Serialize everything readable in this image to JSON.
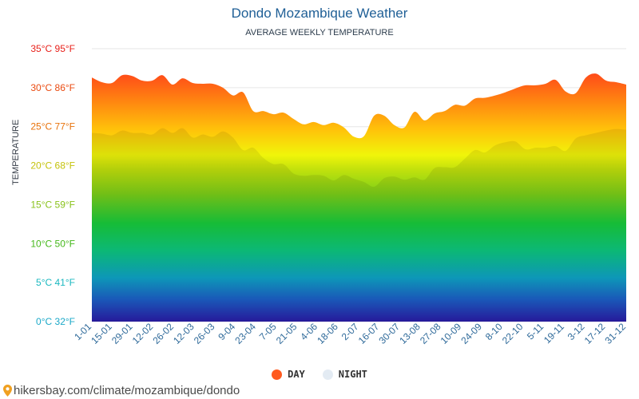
{
  "header": {
    "title": "Dondo Mozambique Weather",
    "subtitle": "AVERAGE WEEKLY TEMPERATURE"
  },
  "legend": {
    "day_label": "DAY",
    "night_label": "NIGHT"
  },
  "footer": {
    "url": "hikersbay.com/climate/mozambique/dondo"
  },
  "colors": {
    "title": "#1f5f96",
    "day_dot": "#ff5a1f",
    "night_dot": "#e3ebf3",
    "gridline": "#e6e6e6"
  },
  "chart_data": {
    "type": "area",
    "title": "Dondo Mozambique Weather",
    "subtitle": "AVERAGE WEEKLY TEMPERATURE",
    "xlabel": "",
    "ylabel": "TEMPERATURE",
    "ylim": [
      0,
      35
    ],
    "legend_position": "bottom-center",
    "y_ticks": [
      {
        "value": 0,
        "label": "0°C 32°F",
        "color": "#1aa8c8"
      },
      {
        "value": 5,
        "label": "5°C 41°F",
        "color": "#1ab8c0"
      },
      {
        "value": 10,
        "label": "10°C 50°F",
        "color": "#44b81a"
      },
      {
        "value": 15,
        "label": "15°C 59°F",
        "color": "#88c21a"
      },
      {
        "value": 20,
        "label": "20°C 68°F",
        "color": "#c4c20a"
      },
      {
        "value": 25,
        "label": "25°C 77°F",
        "color": "#e8720a"
      },
      {
        "value": 30,
        "label": "30°C 86°F",
        "color": "#ea4a10"
      },
      {
        "value": 35,
        "label": "35°C 95°F",
        "color": "#e8201a"
      }
    ],
    "x_labels": [
      "1-01",
      "15-01",
      "29-01",
      "12-02",
      "26-02",
      "12-03",
      "26-03",
      "9-04",
      "23-04",
      "7-05",
      "21-05",
      "4-06",
      "18-06",
      "2-07",
      "16-07",
      "30-07",
      "13-08",
      "27-08",
      "10-09",
      "24-09",
      "8-10",
      "22-10",
      "5-11",
      "19-11",
      "3-12",
      "17-12",
      "31-12"
    ],
    "series": [
      {
        "name": "DAY",
        "values": [
          31.3,
          30.7,
          30.6,
          31.6,
          31.5,
          30.9,
          30.9,
          31.6,
          30.4,
          31.2,
          30.6,
          30.5,
          30.5,
          30.0,
          29.0,
          29.4,
          27.0,
          27.0,
          26.6,
          26.8,
          26.0,
          25.3,
          25.6,
          25.2,
          25.5,
          24.9,
          23.7,
          23.8,
          26.4,
          26.4,
          25.2,
          24.9,
          26.9,
          25.8,
          26.7,
          27.0,
          27.8,
          27.7,
          28.6,
          28.7,
          29.0,
          29.4,
          29.9,
          30.3,
          30.3,
          30.5,
          31.0,
          29.5,
          29.3,
          31.3,
          31.8,
          30.9,
          30.7,
          30.4
        ]
      },
      {
        "name": "NIGHT",
        "values": [
          24.2,
          24.1,
          23.9,
          24.5,
          24.2,
          24.2,
          24.0,
          24.8,
          24.2,
          24.8,
          23.6,
          24.0,
          23.7,
          24.4,
          23.6,
          22.0,
          22.3,
          21.0,
          20.2,
          20.2,
          19.0,
          18.7,
          18.8,
          18.7,
          18.1,
          18.8,
          18.3,
          17.9,
          17.3,
          18.4,
          18.6,
          18.2,
          18.5,
          18.2,
          19.7,
          19.8,
          19.8,
          20.9,
          22.0,
          21.7,
          22.6,
          23.0,
          23.1,
          22.1,
          22.3,
          22.3,
          22.5,
          21.9,
          23.5,
          23.9,
          24.2,
          24.5,
          24.7,
          24.6
        ]
      }
    ]
  }
}
